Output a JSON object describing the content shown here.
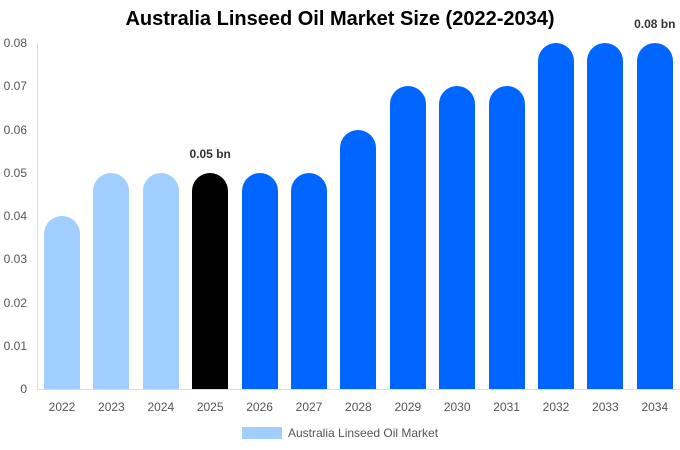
{
  "chart_data": {
    "type": "bar",
    "title": "Australia Linseed Oil Market Size (2022-2034)",
    "categories": [
      "2022",
      "2023",
      "2024",
      "2025",
      "2026",
      "2027",
      "2028",
      "2029",
      "2030",
      "2031",
      "2032",
      "2033",
      "2034"
    ],
    "series": [
      {
        "name": "Australia Linseed Oil Market",
        "values": [
          0.04,
          0.05,
          0.05,
          0.05,
          0.05,
          0.05,
          0.06,
          0.07,
          0.07,
          0.07,
          0.08,
          0.08,
          0.08
        ]
      }
    ],
    "bar_colors": [
      "#a0cfff",
      "#a0cfff",
      "#a0cfff",
      "#000000",
      "#0066ff",
      "#0066ff",
      "#0066ff",
      "#0066ff",
      "#0066ff",
      "#0066ff",
      "#0066ff",
      "#0066ff",
      "#0066ff"
    ],
    "annotations": [
      {
        "category": "2025",
        "text": "0.05 bn"
      },
      {
        "category": "2034",
        "text": "0.08 bn"
      }
    ],
    "xlabel": "",
    "ylabel": "",
    "ylim": [
      0,
      0.08
    ],
    "yticks": [
      "0",
      "0.01",
      "0.02",
      "0.03",
      "0.04",
      "0.05",
      "0.06",
      "0.07",
      "0.08"
    ],
    "grid": false,
    "legend_position": "bottom"
  },
  "legend": {
    "label": "Australia Linseed Oil Market",
    "color": "#a0cfff"
  }
}
